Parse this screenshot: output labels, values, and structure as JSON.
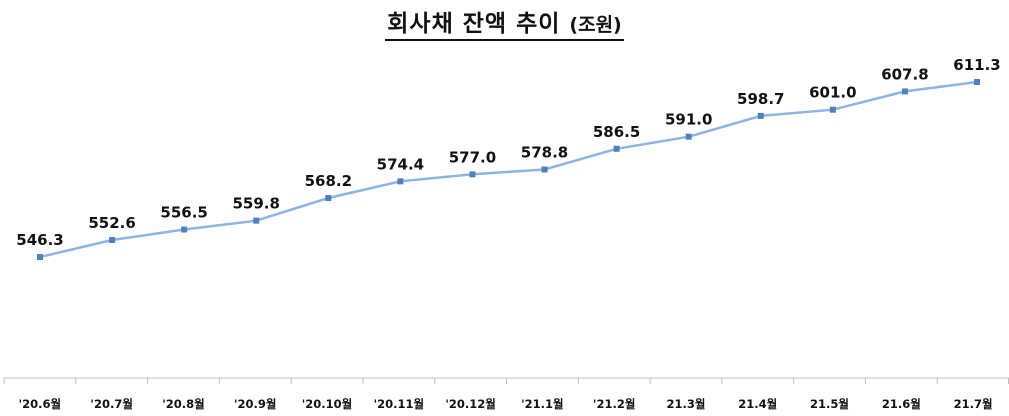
{
  "chart_data": {
    "type": "line",
    "title": "회사채 잔액 추이",
    "unit_label": "(조원)",
    "xlabel": "",
    "ylabel": "",
    "categories": [
      "'20.6월",
      "'20.7월",
      "'20.8월",
      "'20.9월",
      "'20.10월",
      "'20.11월",
      "'20.12월",
      "'21.1월",
      "'21.2월",
      "21.3월",
      "21.4월",
      "21.5월",
      "21.6월",
      "21.7월"
    ],
    "series": [
      {
        "values": [
          546.3,
          552.6,
          556.5,
          559.8,
          568.2,
          574.4,
          577.0,
          578.8,
          586.5,
          591.0,
          598.7,
          601.0,
          607.8,
          611.3
        ],
        "labels": [
          "546.3",
          "552.6",
          "556.5",
          "559.8",
          "568.2",
          "574.4",
          "577.0",
          "578.8",
          "586.5",
          "591.0",
          "598.7",
          "601.0",
          "607.8",
          "611.3"
        ]
      }
    ],
    "grid": false,
    "legend": "none",
    "colors": {
      "line": "#8eb4e3",
      "marker": "#4f81bd",
      "axis": "#bfbfbf"
    }
  }
}
